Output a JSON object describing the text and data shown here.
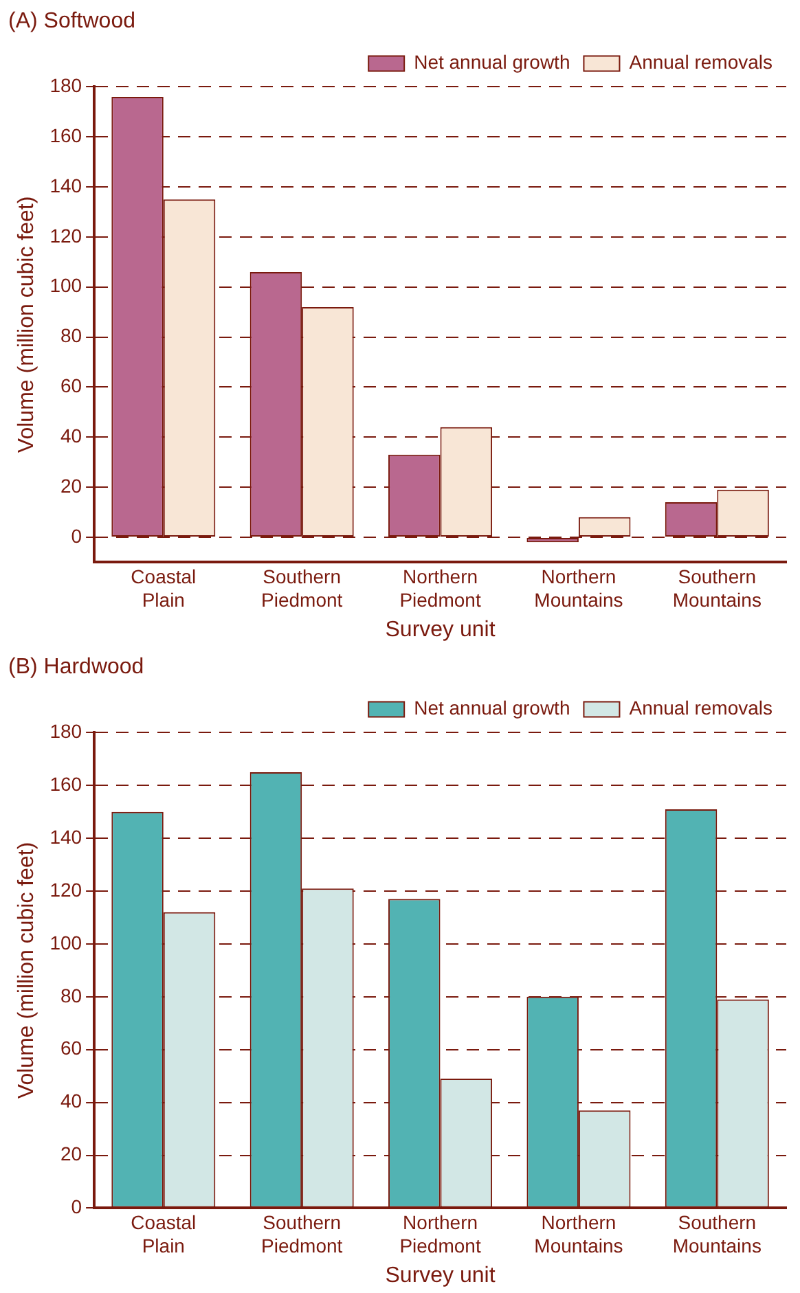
{
  "chart_data": [
    {
      "type": "bar",
      "title": "(A) Softwood",
      "xlabel": "Survey unit",
      "ylabel": "Volume (million cubic feet)",
      "categories": [
        "Coastal Plain",
        "Southern Piedmont",
        "Northern Piedmont",
        "Northern Mountains",
        "Southern Mountains"
      ],
      "series": [
        {
          "name": "Net annual growth",
          "color": "#b9688f",
          "values": [
            176,
            106,
            33,
            -2,
            14
          ]
        },
        {
          "name": "Annual removals",
          "color": "#f8e6d6",
          "values": [
            135,
            92,
            44,
            8,
            19
          ]
        }
      ],
      "ylim": [
        -10,
        180
      ],
      "yticks": [
        0,
        20,
        40,
        60,
        80,
        100,
        120,
        140,
        160,
        180
      ],
      "grid": "y",
      "legend": "top right"
    },
    {
      "type": "bar",
      "title": "(B) Hardwood",
      "xlabel": "Survey unit",
      "ylabel": "Volume (million cubic feet)",
      "categories": [
        "Coastal Plain",
        "Southern Piedmont",
        "Northern Piedmont",
        "Northern Mountains",
        "Southern Mountains"
      ],
      "series": [
        {
          "name": "Net annual growth",
          "color": "#52b3b3",
          "values": [
            150,
            165,
            117,
            80,
            151
          ]
        },
        {
          "name": "Annual removals",
          "color": "#d2e7e5",
          "values": [
            112,
            121,
            49,
            37,
            79
          ]
        }
      ],
      "ylim": [
        0,
        180
      ],
      "yticks": [
        0,
        20,
        40,
        60,
        80,
        100,
        120,
        140,
        160,
        180
      ],
      "grid": "y",
      "legend": "top right"
    }
  ]
}
